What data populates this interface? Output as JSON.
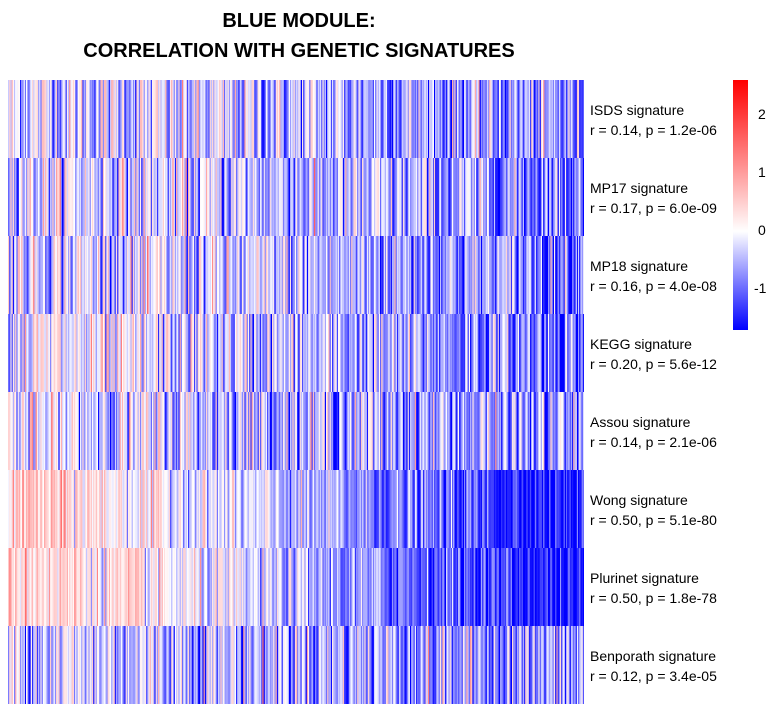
{
  "chart_data": {
    "type": "heatmap",
    "title_lines": [
      "BLUE MODULE:",
      "CORRELATION WITH GENETIC SIGNATURES"
    ],
    "rows": [
      {
        "name": "ISDS signature",
        "stat": "r = 0.14, p = 1.2e-06",
        "r": 0.14
      },
      {
        "name": "MP17 signature",
        "stat": "r = 0.17, p = 6.0e-09",
        "r": 0.17
      },
      {
        "name": "MP18 signature",
        "stat": "r = 0.16, p = 4.0e-08",
        "r": 0.16
      },
      {
        "name": "KEGG signature",
        "stat": "r = 0.20, p = 5.6e-12",
        "r": 0.2
      },
      {
        "name": "Assou signature",
        "stat": "r = 0.14, p = 2.1e-06",
        "r": 0.14
      },
      {
        "name": "Wong signature",
        "stat": "r = 0.50, p = 5.1e-80",
        "r": 0.5
      },
      {
        "name": "Plurinet signature",
        "stat": "r = 0.50, p = 1.8e-78",
        "r": 0.5
      },
      {
        "name": "Benporath signature",
        "stat": "r = 0.12, p = 3.4e-05",
        "r": 0.12
      }
    ],
    "color_scale": {
      "min": -1.7,
      "max": 2.6,
      "ticks": [
        "2",
        "1",
        "0",
        "-1"
      ],
      "tick_values": [
        2,
        1,
        0,
        -1
      ],
      "low_color": "#0000ff",
      "mid_color": "#ffffff",
      "high_color": "#ff0000"
    },
    "legend": "right"
  }
}
